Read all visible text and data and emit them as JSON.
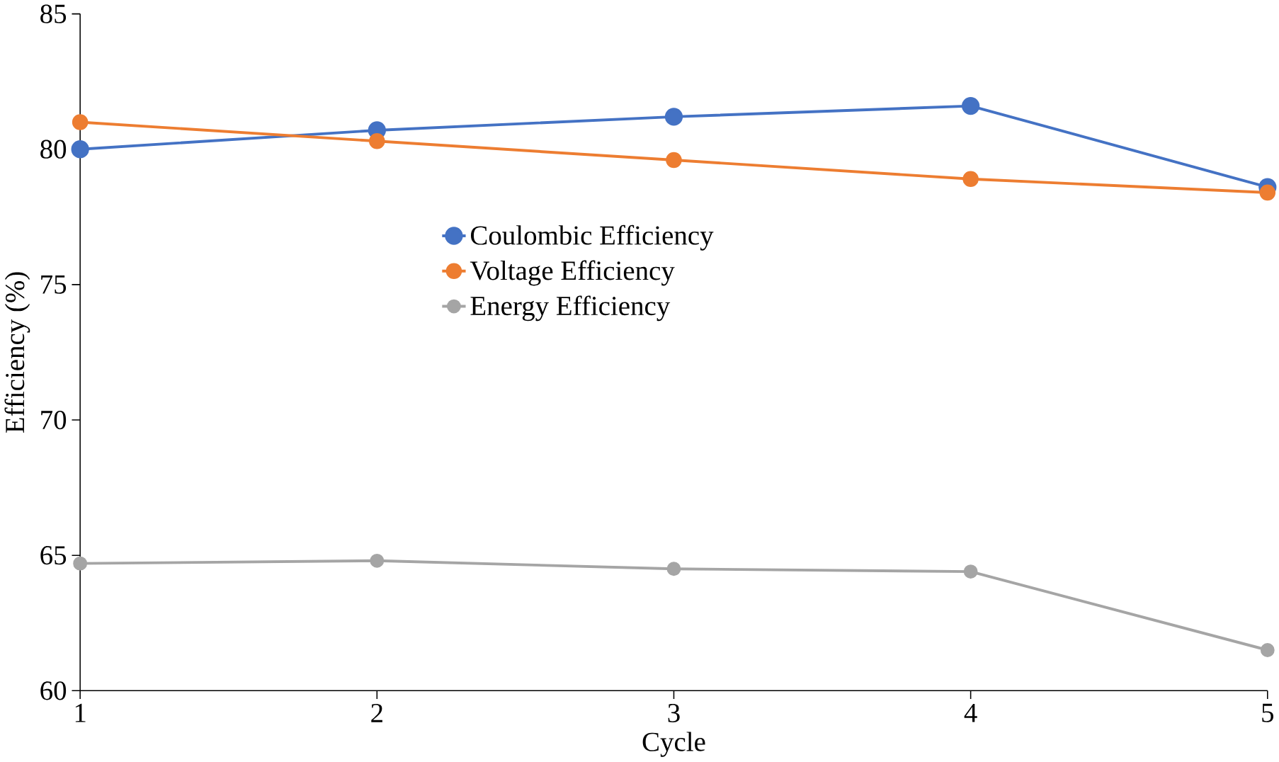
{
  "chart_data": {
    "type": "line",
    "xlabel": "Cycle",
    "ylabel": "Efficiency (%)",
    "x": [
      1,
      2,
      3,
      4,
      5
    ],
    "xlim": [
      1,
      5
    ],
    "xticks": [
      1,
      2,
      3,
      4,
      5
    ],
    "ylim": [
      60,
      85
    ],
    "yticks": [
      60,
      65,
      70,
      75,
      80,
      85
    ],
    "grid": false,
    "legend": "left",
    "marker": "circle",
    "line_style": "solid",
    "series": [
      {
        "name": "Coulombic Efficiency",
        "color": "#4472c4",
        "values": [
          80.0,
          80.7,
          81.2,
          81.6,
          78.6
        ]
      },
      {
        "name": "Voltage Efficiency",
        "color": "#ed7d31",
        "values": [
          81.0,
          80.3,
          79.6,
          78.9,
          78.4
        ]
      },
      {
        "name": "Energy Efficiency",
        "color": "#a5a5a5",
        "values": [
          64.7,
          64.8,
          64.5,
          64.4,
          61.5
        ]
      }
    ]
  }
}
